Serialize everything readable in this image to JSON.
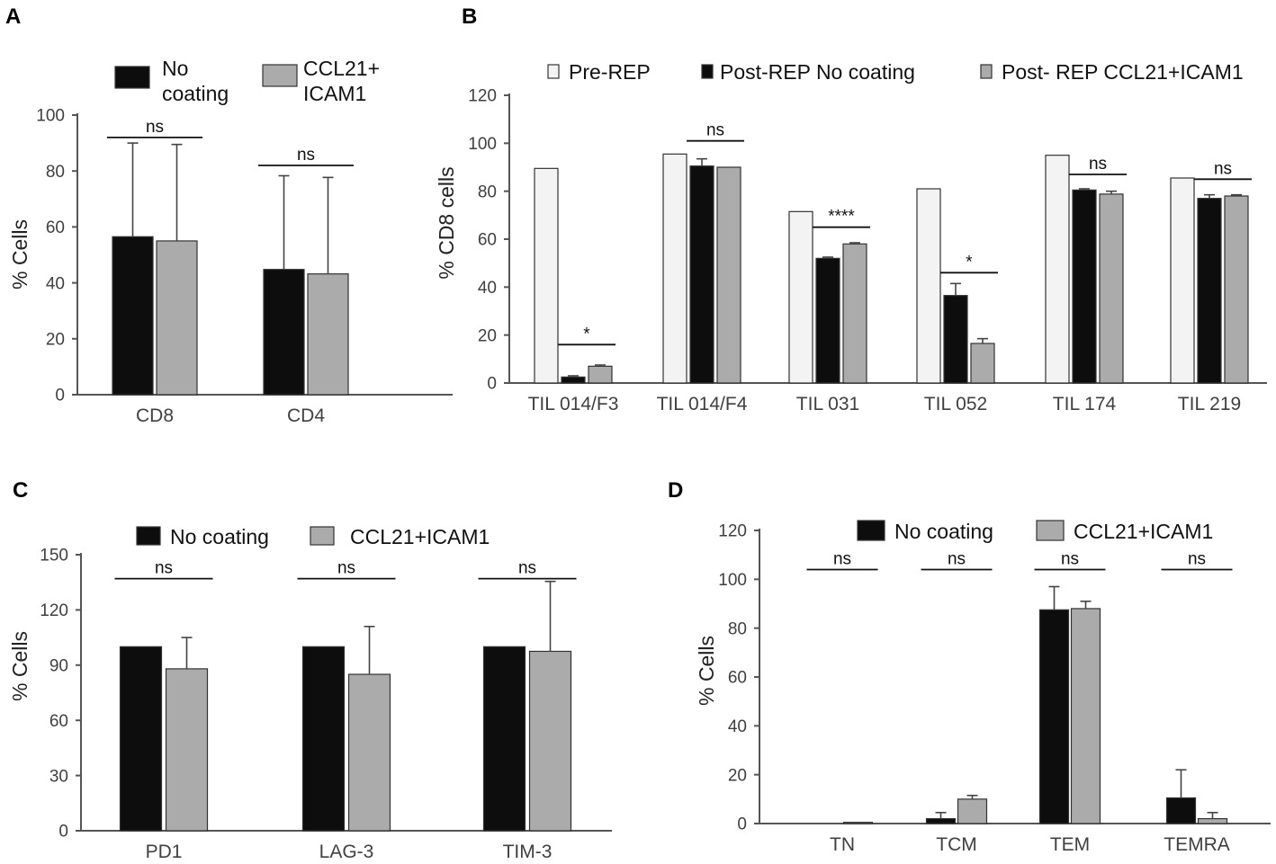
{
  "colors": {
    "no_coating": "#0d0d0d",
    "ccl21_icam1": "#ababab",
    "pre_rep": "#f3f3f3",
    "outline": "#333333"
  },
  "chart_data": [
    {
      "panel": "A",
      "type": "bar",
      "ylabel": "% Cells",
      "ylim": [
        0,
        100
      ],
      "yticks": [
        0,
        20,
        40,
        60,
        80,
        100
      ],
      "categories": [
        "CD8",
        "CD4"
      ],
      "legend": [
        {
          "lines": [
            "No",
            "coating"
          ],
          "color_key": "no_coating"
        },
        {
          "lines": [
            "CCL21+",
            "ICAM1"
          ],
          "color_key": "ccl21_icam1"
        }
      ],
      "series": [
        {
          "name": "No coating",
          "color_key": "no_coating",
          "values": [
            56.5,
            44.8
          ],
          "errors": [
            33.5,
            33.5
          ]
        },
        {
          "name": "CCL21+ICAM1",
          "color_key": "ccl21_icam1",
          "values": [
            55,
            43.2
          ],
          "errors": [
            34.5,
            34.5
          ]
        }
      ],
      "significance": [
        {
          "category": 0,
          "label": "ns",
          "y": 92
        },
        {
          "category": 1,
          "label": "ns",
          "y": 82
        }
      ]
    },
    {
      "panel": "B",
      "type": "bar",
      "ylabel": "% CD8  cells",
      "ylim": [
        0,
        120
      ],
      "yticks": [
        0,
        20,
        40,
        60,
        80,
        100,
        120
      ],
      "categories": [
        "TIL 014/F3",
        "TIL 014/F4",
        "TIL 031",
        "TIL 052",
        "TIL 174",
        "TIL 219"
      ],
      "legend": [
        {
          "lines": [
            "Pre-REP"
          ],
          "color_key": "pre_rep"
        },
        {
          "lines": [
            "Post-REP No coating"
          ],
          "color_key": "no_coating"
        },
        {
          "lines": [
            "Post- REP CCL21+ICAM1"
          ],
          "color_key": "ccl21_icam1"
        }
      ],
      "series": [
        {
          "name": "Pre-REP",
          "color_key": "pre_rep",
          "values": [
            89.5,
            95.5,
            71.5,
            81,
            95,
            85.5
          ],
          "errors": [
            0,
            0,
            0,
            0,
            0,
            0
          ]
        },
        {
          "name": "Post-REP No coating",
          "color_key": "no_coating",
          "values": [
            2.5,
            90.5,
            52,
            36.5,
            80.5,
            77
          ],
          "errors": [
            0.5,
            3,
            0.5,
            5,
            0.5,
            1.5
          ]
        },
        {
          "name": "Post- REP CCL21+ICAM1",
          "color_key": "ccl21_icam1",
          "values": [
            7,
            90,
            58,
            16.5,
            78.8,
            78
          ],
          "errors": [
            0.5,
            0,
            0.5,
            2,
            1.2,
            0.5
          ]
        }
      ],
      "significance": [
        {
          "category": 0,
          "label": "*",
          "y": 16
        },
        {
          "category": 1,
          "label": "ns",
          "y": 101
        },
        {
          "category": 2,
          "label": "****",
          "y": 65
        },
        {
          "category": 3,
          "label": "*",
          "y": 46
        },
        {
          "category": 4,
          "label": "ns",
          "y": 87
        },
        {
          "category": 5,
          "label": "ns",
          "y": 85
        }
      ]
    },
    {
      "panel": "C",
      "type": "bar",
      "ylabel": "% Cells",
      "ylim": [
        0,
        150
      ],
      "yticks": [
        0,
        30,
        60,
        90,
        120,
        150
      ],
      "categories": [
        "PD1",
        "LAG-3",
        "TIM-3"
      ],
      "legend": [
        {
          "lines": [
            "No coating"
          ],
          "color_key": "no_coating"
        },
        {
          "lines": [
            "CCL21+ICAM1"
          ],
          "color_key": "ccl21_icam1"
        }
      ],
      "series": [
        {
          "name": "No coating",
          "color_key": "no_coating",
          "values": [
            100,
            100,
            100
          ],
          "errors": [
            0,
            0,
            0
          ]
        },
        {
          "name": "CCL21+ICAM1",
          "color_key": "ccl21_icam1",
          "values": [
            88,
            85,
            97.5
          ],
          "errors": [
            17,
            26,
            38
          ]
        }
      ],
      "significance": [
        {
          "category": 0,
          "label": "ns",
          "y": 137
        },
        {
          "category": 1,
          "label": "ns",
          "y": 137
        },
        {
          "category": 2,
          "label": "ns",
          "y": 137
        }
      ]
    },
    {
      "panel": "D",
      "type": "bar",
      "ylabel": "% Cells",
      "ylim": [
        0,
        120
      ],
      "yticks": [
        0,
        20,
        40,
        60,
        80,
        100,
        120
      ],
      "categories": [
        "TN",
        "TCM",
        "TEM",
        "TEMRA"
      ],
      "legend": [
        {
          "lines": [
            "No coating"
          ],
          "color_key": "no_coating"
        },
        {
          "lines": [
            "CCL21+ICAM1"
          ],
          "color_key": "ccl21_icam1"
        }
      ],
      "series": [
        {
          "name": "No coating",
          "color_key": "no_coating",
          "values": [
            0,
            2,
            87.5,
            10.5
          ],
          "errors": [
            0,
            2.5,
            9.5,
            11.5
          ]
        },
        {
          "name": "CCL21+ICAM1",
          "color_key": "ccl21_icam1",
          "values": [
            0.5,
            10,
            88,
            2
          ],
          "errors": [
            0,
            1.5,
            3,
            2.5
          ]
        }
      ],
      "significance": [
        {
          "category": 0,
          "label": "ns",
          "y": 104
        },
        {
          "category": 1,
          "label": "ns",
          "y": 104
        },
        {
          "category": 2,
          "label": "ns",
          "y": 104
        },
        {
          "category": 3,
          "label": "ns",
          "y": 104
        }
      ]
    }
  ]
}
